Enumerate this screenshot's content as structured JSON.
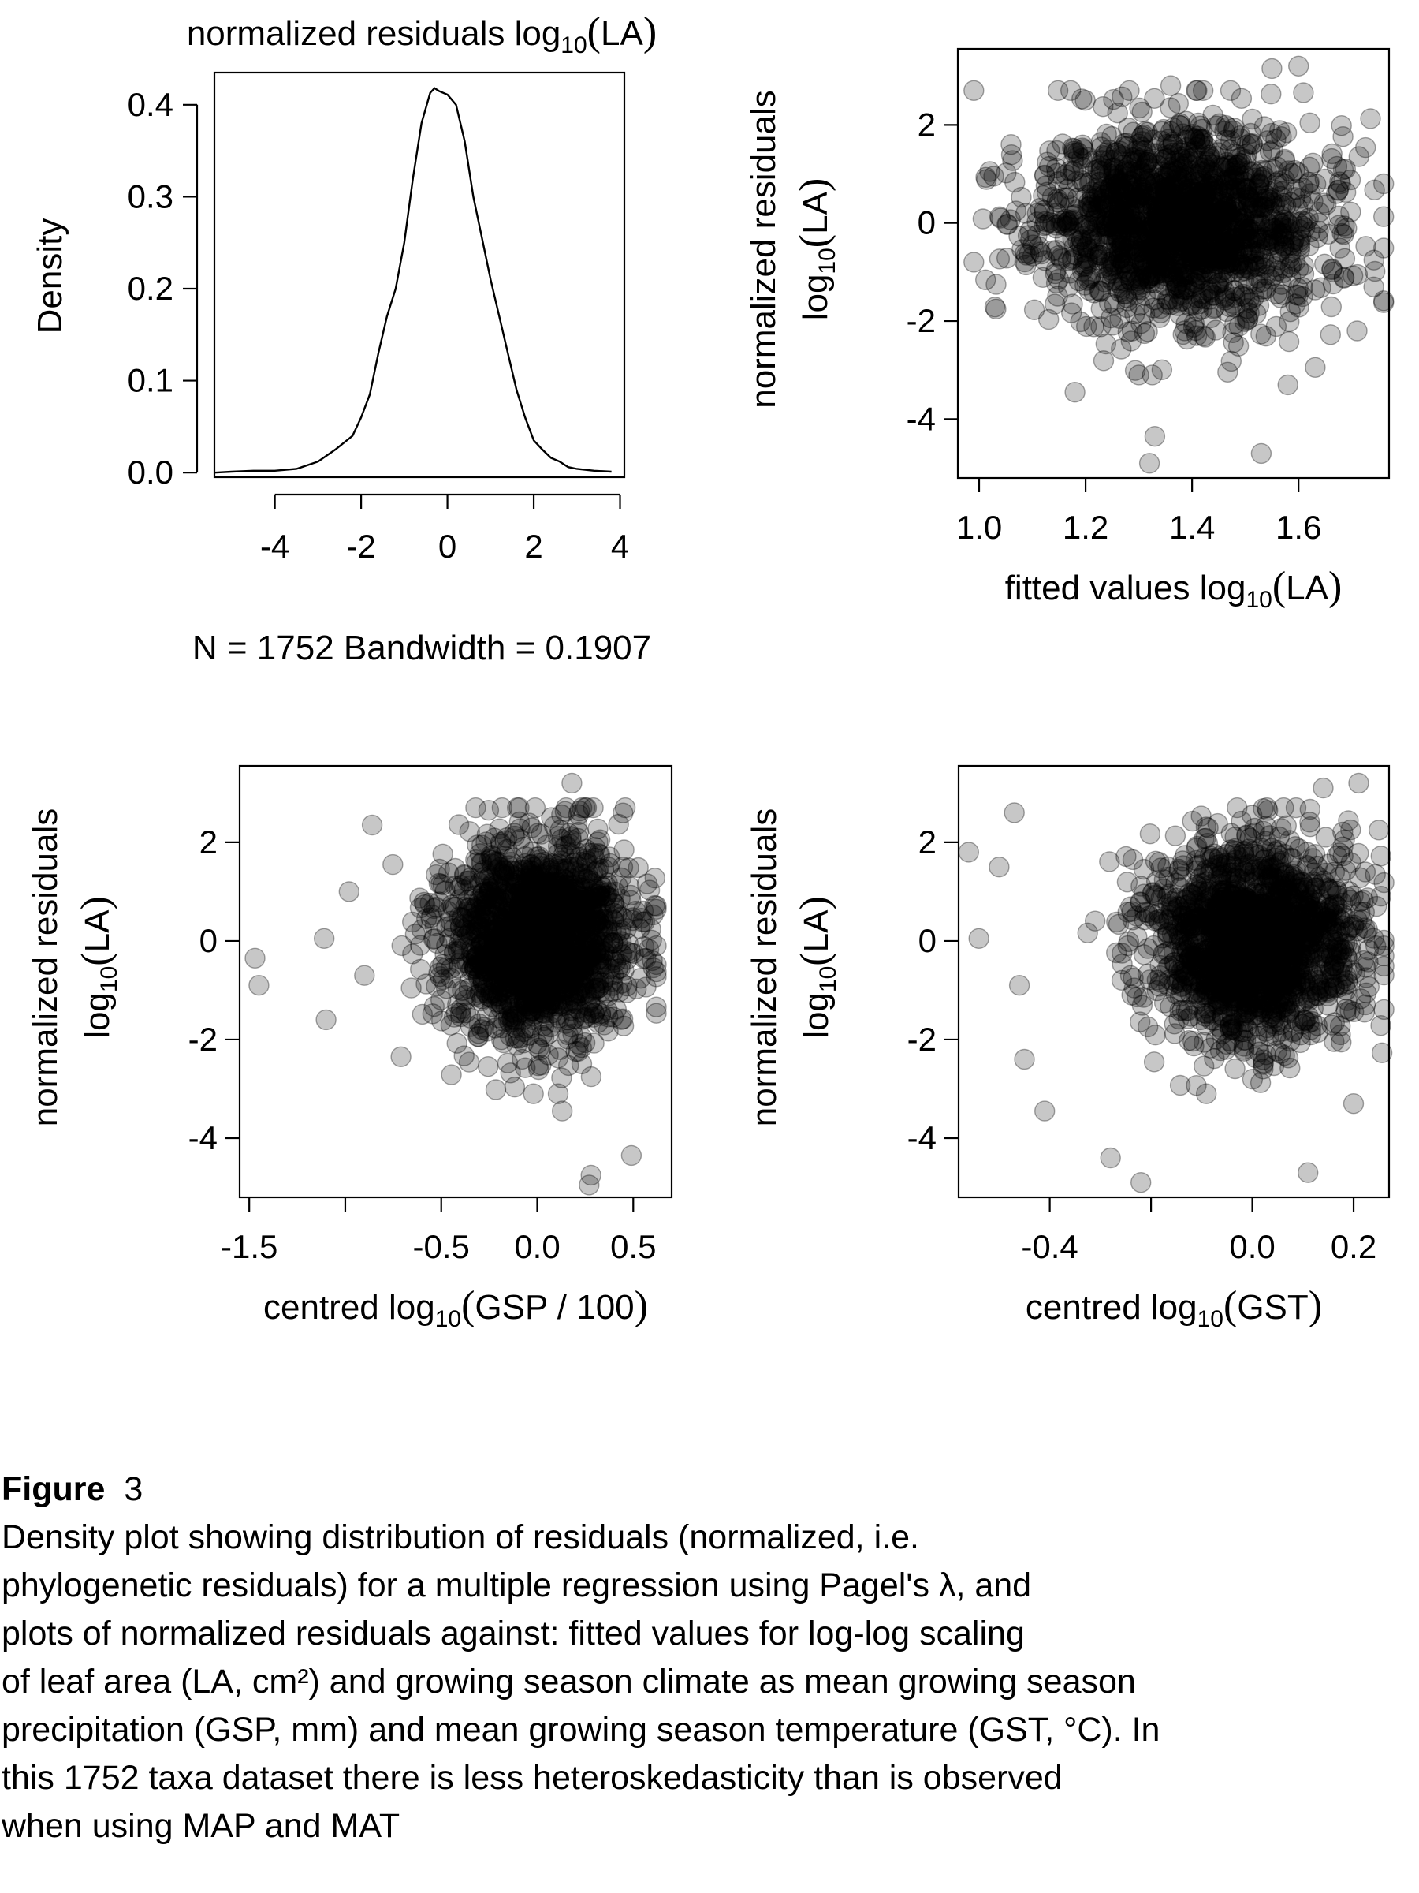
{
  "chart_data": [
    {
      "type": "line",
      "title_prefix": "normalized  residuals  log",
      "title_sub": "10",
      "title_suffix": "LA",
      "ylabel": "Density",
      "xlabel": "N = 1752   Bandwidth = 0.1907",
      "xlim": [
        -5.4,
        4.1
      ],
      "ylim": [
        -0.005,
        0.435
      ],
      "xticks": [
        -4,
        -2,
        0,
        2,
        4
      ],
      "yticks": [
        "0.0",
        "0.1",
        "0.2",
        "0.3",
        "0.4"
      ],
      "x": [
        -5.4,
        -5.0,
        -4.5,
        -4.0,
        -3.5,
        -3.0,
        -2.6,
        -2.2,
        -2.0,
        -1.8,
        -1.6,
        -1.4,
        -1.2,
        -1.0,
        -0.8,
        -0.6,
        -0.4,
        -0.3,
        -0.2,
        -0.1,
        0.0,
        0.2,
        0.4,
        0.6,
        0.8,
        1.0,
        1.2,
        1.4,
        1.6,
        1.8,
        2.0,
        2.2,
        2.4,
        2.6,
        2.8,
        3.0,
        3.4,
        3.8
      ],
      "y": [
        0.0,
        0.001,
        0.002,
        0.002,
        0.004,
        0.012,
        0.025,
        0.04,
        0.06,
        0.085,
        0.13,
        0.17,
        0.2,
        0.25,
        0.32,
        0.38,
        0.413,
        0.418,
        0.415,
        0.413,
        0.411,
        0.4,
        0.36,
        0.3,
        0.255,
        0.21,
        0.17,
        0.13,
        0.09,
        0.06,
        0.035,
        0.025,
        0.016,
        0.012,
        0.006,
        0.004,
        0.002,
        0.001
      ],
      "grid": false
    },
    {
      "type": "scatter",
      "xlabel_prefix": "fitted  values  log",
      "xlabel_sub": "10",
      "xlabel_suffix": "LA",
      "ylabel_line1": "normalized  residuals",
      "ylabel_prefix": "log",
      "ylabel_sub": "10",
      "ylabel_suffix": "LA",
      "xlim": [
        0.96,
        1.77
      ],
      "ylim": [
        -5.2,
        3.55
      ],
      "xticks": [
        "1.0",
        "1.2",
        "1.4",
        "1.6"
      ],
      "yticks": [
        "-4",
        "-2",
        "0",
        "2"
      ],
      "n": 1752,
      "seed": 11,
      "cloud": {
        "center_x": 1.38,
        "spread_x": 0.13,
        "min_x": 0.99,
        "max_x": 1.76,
        "spread_y": 1.0
      },
      "points": [
        {
          "x": 0.99,
          "y": -0.8
        },
        {
          "x": 1.02,
          "y": 1.05
        },
        {
          "x": 1.06,
          "y": 1.6
        },
        {
          "x": 1.04,
          "y": 0.1
        },
        {
          "x": 1.18,
          "y": -3.45
        },
        {
          "x": 1.33,
          "y": -4.35
        },
        {
          "x": 1.32,
          "y": -4.9
        },
        {
          "x": 1.53,
          "y": -4.7
        },
        {
          "x": 1.55,
          "y": 3.15
        },
        {
          "x": 1.6,
          "y": 3.2
        },
        {
          "x": 1.76,
          "y": 0.8
        },
        {
          "x": 1.58,
          "y": -3.3
        },
        {
          "x": 1.36,
          "y": 2.8
        },
        {
          "x": 1.3,
          "y": -3.1
        },
        {
          "x": 1.71,
          "y": -2.2
        }
      ],
      "grid": false
    },
    {
      "type": "scatter",
      "xlabel_prefix": "centred  log",
      "xlabel_sub": "10",
      "xlabel_suffix": "GSP / 100",
      "ylabel_line1": "normalized  residuals",
      "ylabel_prefix": "log",
      "ylabel_sub": "10",
      "ylabel_suffix": "LA",
      "xlim": [
        -1.55,
        0.7
      ],
      "ylim": [
        -5.2,
        3.55
      ],
      "xticks": [
        "-1.5",
        "",
        "-0.5",
        "0.0",
        "0.5"
      ],
      "xtick_values": [
        -1.5,
        -1.0,
        -0.5,
        0.0,
        0.5
      ],
      "yticks": [
        "-4",
        "-2",
        "0",
        "2"
      ],
      "n": 1752,
      "seed": 23,
      "cloud": {
        "center_x": 0.0,
        "spread_x": 0.24,
        "min_x": -1.5,
        "max_x": 0.62,
        "spread_y": 1.0
      },
      "points": [
        {
          "x": -1.47,
          "y": -0.35
        },
        {
          "x": -1.45,
          "y": -0.9
        },
        {
          "x": -1.1,
          "y": -1.6
        },
        {
          "x": -1.11,
          "y": 0.05
        },
        {
          "x": -0.98,
          "y": 1.0
        },
        {
          "x": -0.86,
          "y": 2.35
        },
        {
          "x": -0.71,
          "y": -2.35
        },
        {
          "x": 0.28,
          "y": -4.75
        },
        {
          "x": 0.27,
          "y": -4.95
        },
        {
          "x": 0.49,
          "y": -4.35
        },
        {
          "x": 0.18,
          "y": 3.2
        },
        {
          "x": 0.13,
          "y": -3.45
        },
        {
          "x": 0.6,
          "y": -0.4
        },
        {
          "x": -0.9,
          "y": -0.7
        }
      ],
      "grid": false
    },
    {
      "type": "scatter",
      "xlabel_prefix": "centred  log",
      "xlabel_sub": "10",
      "xlabel_suffix": "GST",
      "ylabel_line1": "normalized  residuals",
      "ylabel_prefix": "log",
      "ylabel_sub": "10",
      "ylabel_suffix": "LA",
      "xlim": [
        -0.58,
        0.27
      ],
      "ylim": [
        -5.2,
        3.55
      ],
      "xticks": [
        "-0.4",
        "",
        "0.0",
        "0.2"
      ],
      "xtick_values": [
        -0.4,
        -0.2,
        0.0,
        0.2
      ],
      "yticks": [
        "-4",
        "-2",
        "0",
        "2"
      ],
      "n": 1752,
      "seed": 37,
      "cloud": {
        "center_x": 0.0,
        "spread_x": 0.1,
        "min_x": -0.56,
        "max_x": 0.26,
        "spread_y": 1.0
      },
      "points": [
        {
          "x": -0.56,
          "y": 1.8
        },
        {
          "x": -0.54,
          "y": 0.05
        },
        {
          "x": -0.5,
          "y": 1.5
        },
        {
          "x": -0.47,
          "y": 2.6
        },
        {
          "x": -0.41,
          "y": -3.45
        },
        {
          "x": -0.28,
          "y": -4.4
        },
        {
          "x": -0.22,
          "y": -4.9
        },
        {
          "x": 0.11,
          "y": -4.7
        },
        {
          "x": 0.14,
          "y": 3.1
        },
        {
          "x": 0.21,
          "y": 3.2
        },
        {
          "x": 0.26,
          "y": -0.1
        },
        {
          "x": 0.2,
          "y": -3.3
        },
        {
          "x": -0.45,
          "y": -2.4
        },
        {
          "x": -0.46,
          "y": -0.9
        }
      ],
      "grid": false
    }
  ],
  "caption": {
    "label": "Figure",
    "number": "3",
    "lines": [
      "Density plot showing distribution of residuals (normalized, i.e.",
      "phylogenetic residuals) for a multiple regression using Pagel's λ, and",
      "plots of normalized residuals against: fitted values for log-log scaling",
      "of leaf area (LA, cm²) and growing season climate as mean growing season",
      "precipitation (GSP, mm) and mean growing season temperature (GST, °C). In",
      "this 1752 taxa dataset there is less heteroskedasticity than is observed",
      "when using MAP and MAT"
    ]
  }
}
